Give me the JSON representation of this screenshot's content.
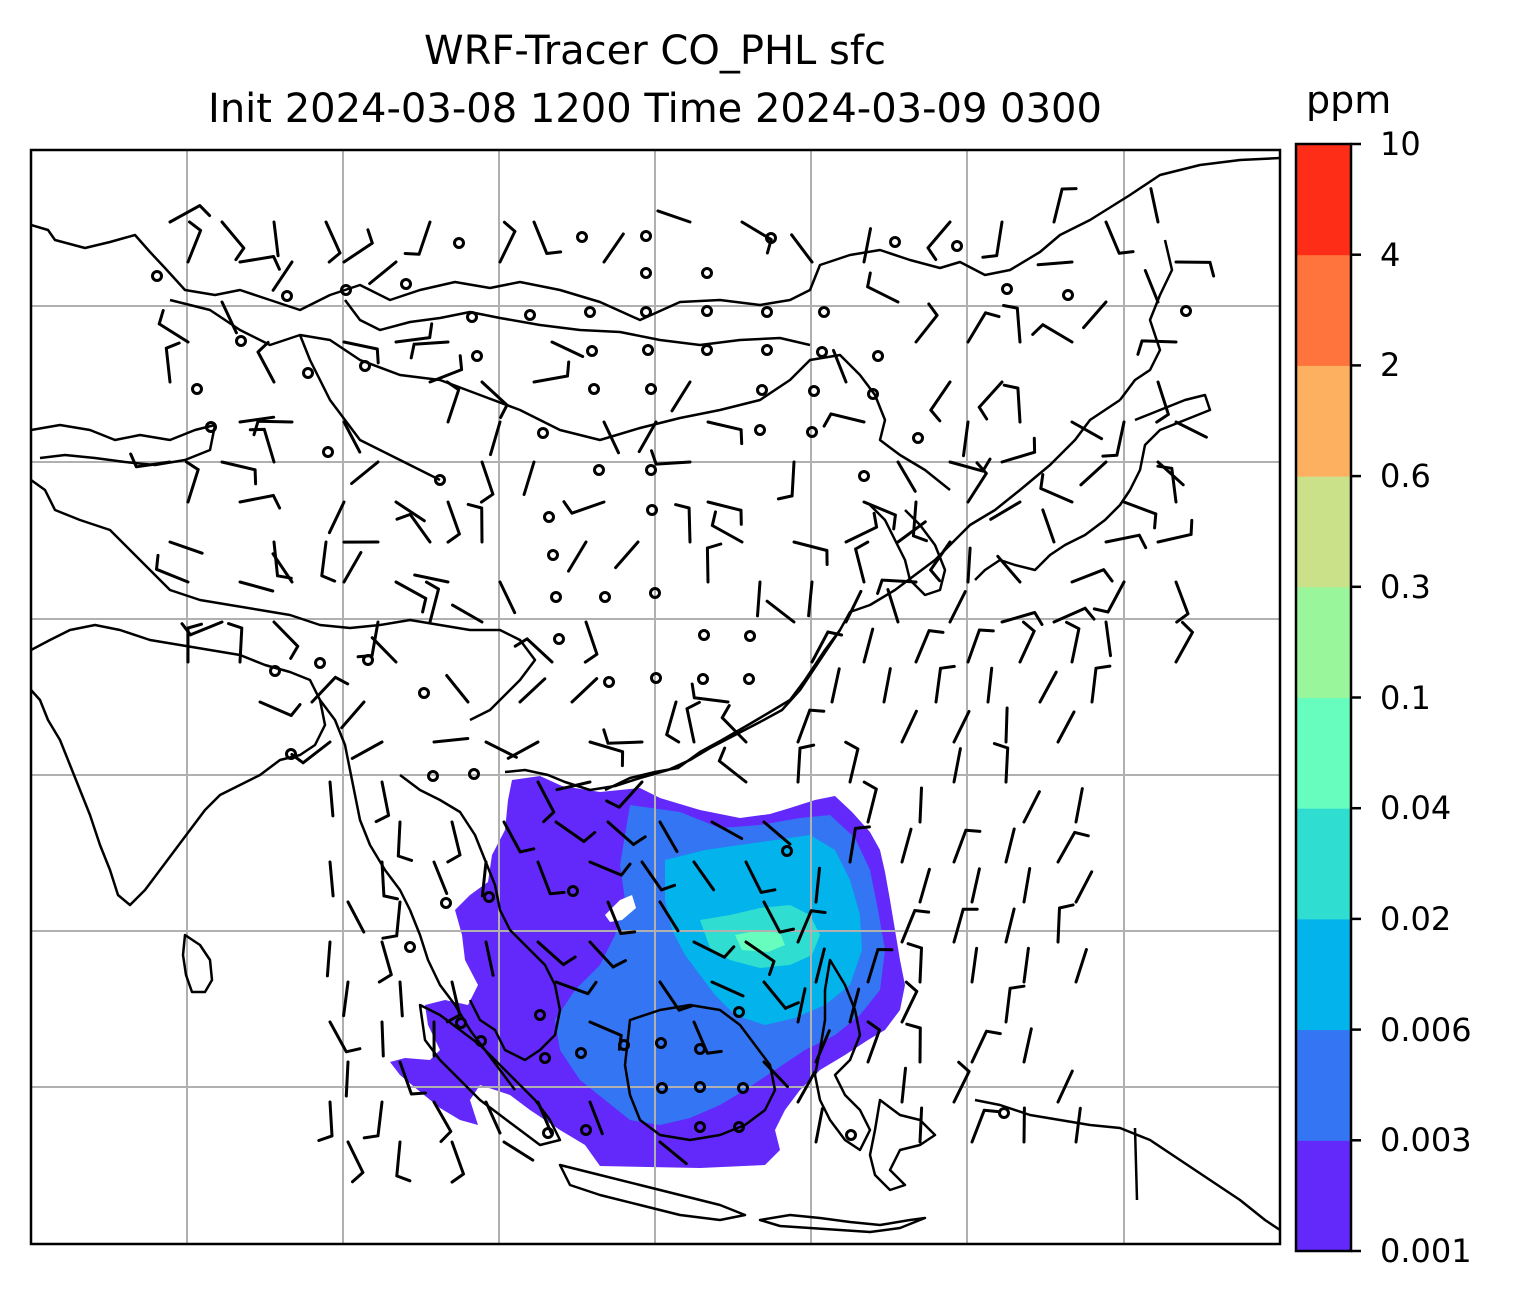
{
  "title": {
    "line1": "WRF-Tracer CO_PHL sfc",
    "line2": "Init 2024-03-08 1200 Time 2024-03-09 0300"
  },
  "colorbar": {
    "unit": "ppm",
    "levels": [
      "0.001",
      "0.003",
      "0.006",
      "0.02",
      "0.04",
      "0.1",
      "0.3",
      "0.6",
      "2",
      "4",
      "10"
    ],
    "colors": [
      "#6329fa",
      "#3475f4",
      "#02b3ec",
      "#2fddd1",
      "#67fdbe",
      "#9af69a",
      "#cbe189",
      "#feb061",
      "#fe743c",
      "#fe2d18"
    ]
  },
  "map": {
    "gridlines": true,
    "wind_barbs": true,
    "tracer_field": "CO_PHL"
  }
}
